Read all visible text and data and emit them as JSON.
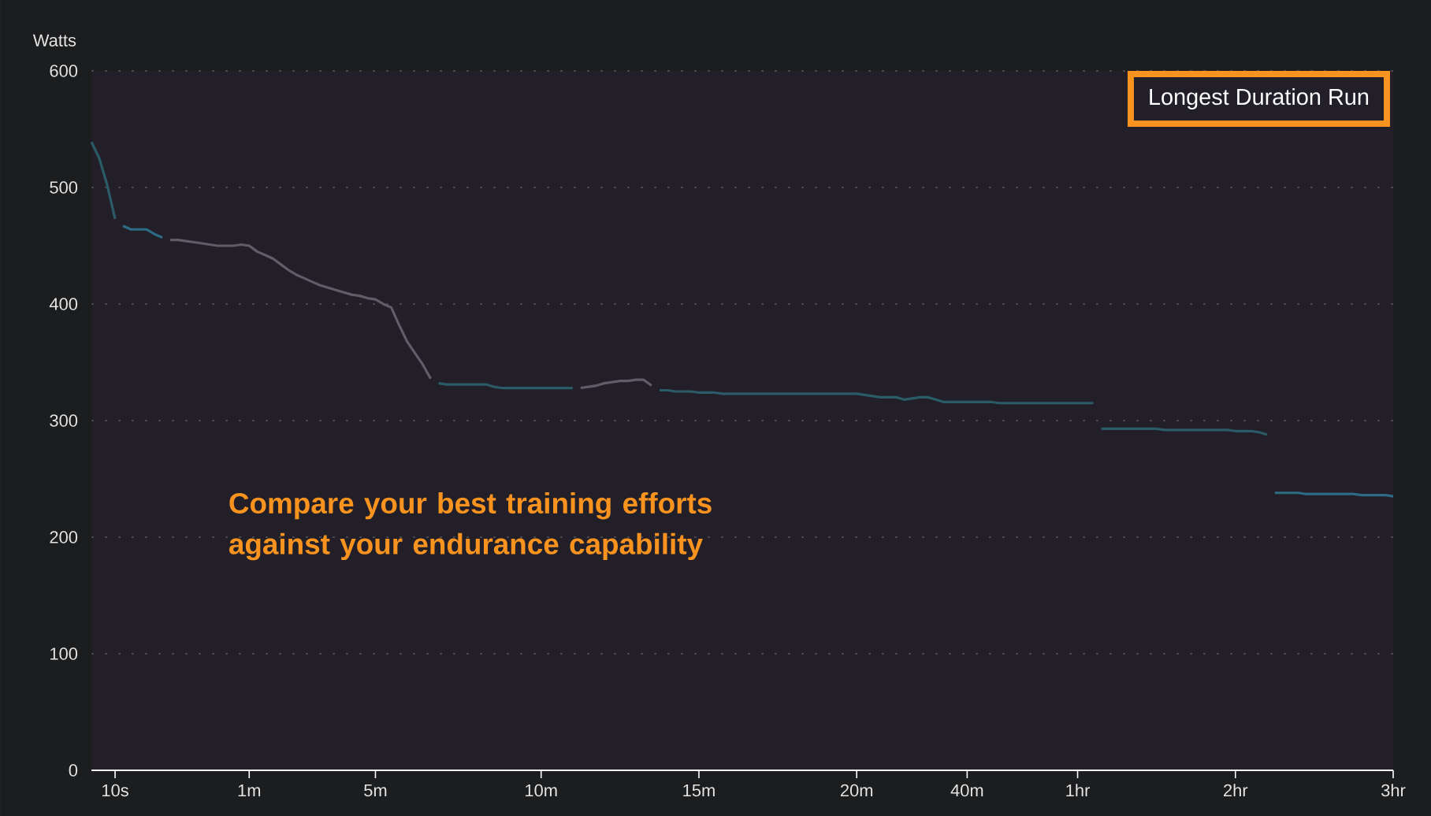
{
  "chart_data": {
    "type": "line",
    "ylabel": "Watts",
    "ylim": [
      0,
      600
    ],
    "categories": [
      null,
      null,
      null,
      "10s",
      null,
      null,
      null,
      null,
      null,
      null,
      null,
      null,
      null,
      null,
      null,
      null,
      null,
      null,
      null,
      null,
      "1m",
      null,
      null,
      null,
      null,
      null,
      null,
      null,
      null,
      null,
      null,
      null,
      null,
      null,
      null,
      null,
      "5m",
      null,
      null,
      null,
      null,
      null,
      null,
      null,
      null,
      null,
      null,
      null,
      null,
      null,
      null,
      null,
      null,
      null,
      null,
      null,
      null,
      "10m",
      null,
      null,
      null,
      null,
      null,
      null,
      null,
      null,
      null,
      null,
      null,
      null,
      null,
      null,
      null,
      null,
      null,
      null,
      null,
      "15m",
      null,
      null,
      null,
      null,
      null,
      null,
      null,
      null,
      null,
      null,
      null,
      null,
      null,
      null,
      null,
      null,
      null,
      null,
      null,
      "20m",
      null,
      null,
      null,
      null,
      null,
      null,
      null,
      null,
      null,
      null,
      null,
      null,
      null,
      "40m",
      null,
      null,
      null,
      null,
      null,
      null,
      null,
      null,
      null,
      null,
      null,
      null,
      null,
      "1hr",
      null,
      null,
      null,
      null,
      null,
      null,
      null,
      null,
      null,
      null,
      null,
      null,
      null,
      null,
      null,
      null,
      null,
      null,
      null,
      "2hr",
      null,
      null,
      null,
      null,
      null,
      null,
      null,
      null,
      null,
      null,
      null,
      null,
      null,
      null,
      null,
      null,
      null,
      null,
      null,
      "3hr"
    ],
    "yticks": [
      0,
      100,
      200,
      300,
      400,
      500,
      600
    ],
    "grid": "y",
    "line_style": "solid",
    "series": [
      {
        "color": "#2b5b67",
        "values": [
          539,
          525,
          502,
          473,
          null,
          null,
          null,
          null,
          null,
          null,
          null,
          null,
          null,
          null,
          null,
          null,
          null,
          null,
          null,
          null,
          null,
          null,
          null,
          null,
          null,
          null,
          null,
          null,
          null,
          null,
          null,
          null,
          null,
          null,
          null,
          null,
          null,
          null,
          null,
          null,
          null,
          null,
          null,
          null,
          null,
          null,
          null,
          null,
          null,
          null,
          null,
          null,
          null,
          null,
          null,
          null,
          null,
          null,
          null,
          null,
          null,
          null,
          null,
          null,
          null,
          null,
          null,
          null,
          null,
          null,
          null,
          null,
          null,
          null,
          null,
          null,
          null,
          null,
          null,
          null,
          null,
          null,
          null,
          null,
          null,
          null,
          null,
          null,
          null,
          null,
          null,
          null,
          null,
          null,
          null,
          null,
          null,
          null,
          null,
          null,
          null,
          null,
          null,
          null,
          null,
          null,
          null,
          null,
          null,
          null,
          null,
          null,
          null,
          null,
          null,
          null,
          null,
          null,
          null,
          null,
          null,
          null,
          null,
          null,
          null,
          null,
          null,
          null,
          null,
          null,
          null,
          null,
          null,
          null,
          null,
          null,
          null,
          null,
          null,
          null,
          null,
          null,
          null,
          null,
          null,
          null,
          null,
          null,
          null,
          null,
          null,
          null,
          null,
          null,
          null,
          null,
          null,
          null,
          null,
          null,
          null,
          null,
          null,
          null,
          null,
          null
        ]
      },
      {
        "color": "#2e6c85",
        "values": [
          null,
          null,
          null,
          null,
          467,
          464,
          464,
          464,
          460,
          457,
          null,
          null,
          null,
          null,
          null,
          null,
          null,
          null,
          null,
          null,
          null,
          null,
          null,
          null,
          null,
          null,
          null,
          null,
          null,
          null,
          null,
          null,
          null,
          null,
          null,
          null,
          null,
          null,
          null,
          null,
          null,
          null,
          null,
          null,
          null,
          null,
          null,
          null,
          null,
          null,
          null,
          null,
          null,
          null,
          null,
          null,
          null,
          null,
          null,
          null,
          null,
          null,
          null,
          null,
          null,
          null,
          null,
          null,
          null,
          null,
          null,
          null,
          null,
          null,
          null,
          null,
          null,
          null,
          null,
          null,
          null,
          null,
          null,
          null,
          null,
          null,
          null,
          null,
          null,
          null,
          null,
          null,
          null,
          null,
          null,
          null,
          null,
          null,
          null,
          null,
          null,
          null,
          null,
          null,
          null,
          null,
          null,
          null,
          null,
          null,
          null,
          null,
          null,
          null,
          null,
          null,
          null,
          null,
          null,
          null,
          null,
          null,
          null,
          null,
          null,
          null,
          null,
          null,
          null,
          null,
          null,
          null,
          null,
          null,
          null,
          null,
          null,
          null,
          null,
          null,
          null,
          null,
          null,
          null,
          null,
          null,
          null,
          null,
          null,
          null,
          null,
          null,
          null,
          null,
          null,
          null,
          null,
          null,
          null,
          null,
          null,
          null,
          null,
          null,
          null,
          null
        ]
      },
      {
        "color": "#615c68",
        "values": [
          null,
          null,
          null,
          null,
          null,
          null,
          null,
          null,
          null,
          null,
          455,
          455,
          454,
          453,
          452,
          451,
          450,
          450,
          450,
          451,
          450,
          445,
          442,
          439,
          434,
          429,
          425,
          422,
          419,
          416,
          414,
          412,
          410,
          408,
          407,
          405,
          404,
          400,
          397,
          382,
          368,
          358,
          348,
          336,
          null,
          null,
          null,
          null,
          null,
          null,
          null,
          null,
          null,
          null,
          null,
          null,
          null,
          null,
          null,
          null,
          null,
          null,
          null,
          null,
          null,
          null,
          null,
          null,
          null,
          null,
          null,
          null,
          null,
          null,
          null,
          null,
          null,
          null,
          null,
          null,
          null,
          null,
          null,
          null,
          null,
          null,
          null,
          null,
          null,
          null,
          null,
          null,
          null,
          null,
          null,
          null,
          null,
          null,
          null,
          null,
          null,
          null,
          null,
          null,
          null,
          null,
          null,
          null,
          null,
          null,
          null,
          null,
          null,
          null,
          null,
          null,
          null,
          null,
          null,
          null,
          null,
          null,
          null,
          null,
          null,
          null,
          null,
          null,
          null,
          null,
          null,
          null,
          null,
          null,
          null,
          null,
          null,
          null,
          null,
          null,
          null,
          null,
          null,
          null,
          null,
          null,
          null,
          null,
          null,
          null,
          null,
          null,
          null,
          null,
          null,
          null,
          null,
          null,
          null,
          null,
          null,
          null,
          null,
          null,
          null,
          null
        ]
      },
      {
        "color": "#2b5b67",
        "values": [
          null,
          null,
          null,
          null,
          null,
          null,
          null,
          null,
          null,
          null,
          null,
          null,
          null,
          null,
          null,
          null,
          null,
          null,
          null,
          null,
          null,
          null,
          null,
          null,
          null,
          null,
          null,
          null,
          null,
          null,
          null,
          null,
          null,
          null,
          null,
          null,
          null,
          null,
          null,
          null,
          null,
          null,
          null,
          null,
          332,
          331,
          331,
          331,
          331,
          331,
          331,
          329,
          328,
          328,
          328,
          328,
          328,
          328,
          328,
          328,
          328,
          328,
          null,
          null,
          null,
          null,
          null,
          null,
          null,
          null,
          null,
          null,
          null,
          null,
          null,
          null,
          null,
          null,
          null,
          null,
          null,
          null,
          null,
          null,
          null,
          null,
          null,
          null,
          null,
          null,
          null,
          null,
          null,
          null,
          null,
          null,
          null,
          null,
          null,
          null,
          null,
          null,
          null,
          null,
          null,
          null,
          null,
          null,
          null,
          null,
          null,
          null,
          null,
          null,
          null,
          null,
          null,
          null,
          null,
          null,
          null,
          null,
          null,
          null,
          null,
          null,
          null,
          null,
          null,
          null,
          null,
          null,
          null,
          null,
          null,
          null,
          null,
          null,
          null,
          null,
          null,
          null,
          null,
          null,
          null,
          null,
          null,
          null,
          null,
          null,
          null,
          null,
          null,
          null,
          null,
          null,
          null,
          null,
          null,
          null,
          null,
          null,
          null,
          null,
          null,
          null
        ]
      },
      {
        "color": "#615c68",
        "values": [
          null,
          null,
          null,
          null,
          null,
          null,
          null,
          null,
          null,
          null,
          null,
          null,
          null,
          null,
          null,
          null,
          null,
          null,
          null,
          null,
          null,
          null,
          null,
          null,
          null,
          null,
          null,
          null,
          null,
          null,
          null,
          null,
          null,
          null,
          null,
          null,
          null,
          null,
          null,
          null,
          null,
          null,
          null,
          null,
          null,
          null,
          null,
          null,
          null,
          null,
          null,
          null,
          null,
          null,
          null,
          null,
          null,
          null,
          null,
          null,
          null,
          null,
          328,
          329,
          330,
          332,
          333,
          334,
          334,
          335,
          335,
          330,
          null,
          null,
          null,
          null,
          null,
          null,
          null,
          null,
          null,
          null,
          null,
          null,
          null,
          null,
          null,
          null,
          null,
          null,
          null,
          null,
          null,
          null,
          null,
          null,
          null,
          null,
          null,
          null,
          null,
          null,
          null,
          null,
          null,
          null,
          null,
          null,
          null,
          null,
          null,
          null,
          null,
          null,
          null,
          null,
          null,
          null,
          null,
          null,
          null,
          null,
          null,
          null,
          null,
          null,
          null,
          null,
          null,
          null,
          null,
          null,
          null,
          null,
          null,
          null,
          null,
          null,
          null,
          null,
          null,
          null,
          null,
          null,
          null,
          null,
          null,
          null,
          null,
          null,
          null,
          null,
          null,
          null,
          null,
          null,
          null,
          null,
          null,
          null,
          null,
          null,
          null,
          null,
          null,
          null
        ]
      },
      {
        "color": "#2b5b67",
        "values": [
          null,
          null,
          null,
          null,
          null,
          null,
          null,
          null,
          null,
          null,
          null,
          null,
          null,
          null,
          null,
          null,
          null,
          null,
          null,
          null,
          null,
          null,
          null,
          null,
          null,
          null,
          null,
          null,
          null,
          null,
          null,
          null,
          null,
          null,
          null,
          null,
          null,
          null,
          null,
          null,
          null,
          null,
          null,
          null,
          null,
          null,
          null,
          null,
          null,
          null,
          null,
          null,
          null,
          null,
          null,
          null,
          null,
          null,
          null,
          null,
          null,
          null,
          null,
          null,
          null,
          null,
          null,
          null,
          null,
          null,
          null,
          null,
          326,
          326,
          325,
          325,
          325,
          324,
          324,
          324,
          323,
          323,
          323,
          323,
          323,
          323,
          323,
          323,
          323,
          323,
          323,
          323,
          323,
          323,
          323,
          323,
          323,
          323,
          322,
          321,
          320,
          320,
          320,
          318,
          319,
          320,
          320,
          318,
          316,
          316,
          316,
          316,
          316,
          316,
          316,
          315,
          315,
          315,
          315,
          315,
          315,
          315,
          315,
          315,
          315,
          315,
          315,
          315,
          null,
          null,
          null,
          null,
          null,
          null,
          null,
          null,
          null,
          null,
          null,
          null,
          null,
          null,
          null,
          null,
          null,
          null,
          null,
          null,
          null,
          null,
          null,
          null,
          null,
          null,
          null,
          null,
          null,
          null,
          null,
          null,
          null,
          null,
          null,
          null,
          null,
          null
        ]
      },
      {
        "color": "#2b5b67",
        "values": [
          null,
          null,
          null,
          null,
          null,
          null,
          null,
          null,
          null,
          null,
          null,
          null,
          null,
          null,
          null,
          null,
          null,
          null,
          null,
          null,
          null,
          null,
          null,
          null,
          null,
          null,
          null,
          null,
          null,
          null,
          null,
          null,
          null,
          null,
          null,
          null,
          null,
          null,
          null,
          null,
          null,
          null,
          null,
          null,
          null,
          null,
          null,
          null,
          null,
          null,
          null,
          null,
          null,
          null,
          null,
          null,
          null,
          null,
          null,
          null,
          null,
          null,
          null,
          null,
          null,
          null,
          null,
          null,
          null,
          null,
          null,
          null,
          null,
          null,
          null,
          null,
          null,
          null,
          null,
          null,
          null,
          null,
          null,
          null,
          null,
          null,
          null,
          null,
          null,
          null,
          null,
          null,
          null,
          null,
          null,
          null,
          null,
          null,
          null,
          null,
          null,
          null,
          null,
          null,
          null,
          null,
          null,
          null,
          null,
          null,
          null,
          null,
          null,
          null,
          null,
          null,
          null,
          null,
          null,
          null,
          null,
          null,
          null,
          null,
          null,
          null,
          null,
          null,
          293,
          293,
          293,
          293,
          293,
          293,
          293,
          293,
          292,
          292,
          292,
          292,
          292,
          292,
          292,
          292,
          292,
          291,
          291,
          291,
          290,
          288,
          null,
          null,
          null,
          null,
          null,
          null,
          null,
          null,
          null,
          null,
          null,
          null,
          null,
          null,
          null,
          null
        ]
      },
      {
        "color": "#2e6c85",
        "values": [
          null,
          null,
          null,
          null,
          null,
          null,
          null,
          null,
          null,
          null,
          null,
          null,
          null,
          null,
          null,
          null,
          null,
          null,
          null,
          null,
          null,
          null,
          null,
          null,
          null,
          null,
          null,
          null,
          null,
          null,
          null,
          null,
          null,
          null,
          null,
          null,
          null,
          null,
          null,
          null,
          null,
          null,
          null,
          null,
          null,
          null,
          null,
          null,
          null,
          null,
          null,
          null,
          null,
          null,
          null,
          null,
          null,
          null,
          null,
          null,
          null,
          null,
          null,
          null,
          null,
          null,
          null,
          null,
          null,
          null,
          null,
          null,
          null,
          null,
          null,
          null,
          null,
          null,
          null,
          null,
          null,
          null,
          null,
          null,
          null,
          null,
          null,
          null,
          null,
          null,
          null,
          null,
          null,
          null,
          null,
          null,
          null,
          null,
          null,
          null,
          null,
          null,
          null,
          null,
          null,
          null,
          null,
          null,
          null,
          null,
          null,
          null,
          null,
          null,
          null,
          null,
          null,
          null,
          null,
          null,
          null,
          null,
          null,
          null,
          null,
          null,
          null,
          null,
          null,
          null,
          null,
          null,
          null,
          null,
          null,
          null,
          null,
          null,
          null,
          null,
          null,
          null,
          null,
          null,
          null,
          null,
          null,
          null,
          null,
          null,
          238,
          238,
          238,
          238,
          237,
          237,
          237,
          237,
          237,
          237,
          237,
          236,
          236,
          236,
          236,
          235
        ]
      }
    ],
    "annotations": [
      "Longest Duration Run",
      "Compare your best training efforts against your endurance capability"
    ]
  }
}
